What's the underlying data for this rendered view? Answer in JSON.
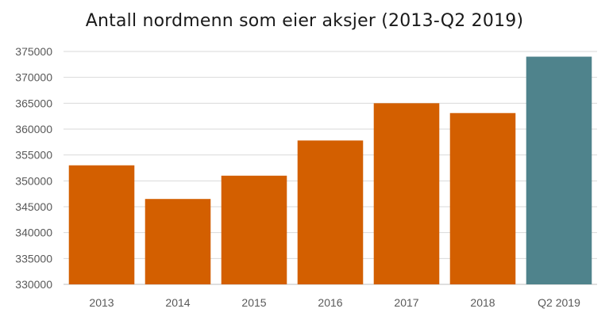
{
  "chart_data": {
    "type": "bar",
    "title": "Antall nordmenn som eier aksjer (2013-Q2 2019)",
    "xlabel": "",
    "ylabel": "",
    "categories": [
      "2013",
      "2014",
      "2015",
      "2016",
      "2017",
      "2018",
      "Q2 2019"
    ],
    "values": [
      353000,
      346500,
      351000,
      357800,
      365000,
      363100,
      374000
    ],
    "bar_colors": [
      "#d35f00",
      "#d35f00",
      "#d35f00",
      "#d35f00",
      "#d35f00",
      "#d35f00",
      "#4f838c"
    ],
    "ylim": [
      330000,
      375000
    ],
    "yticks": [
      330000,
      335000,
      340000,
      345000,
      350000,
      355000,
      360000,
      365000,
      370000,
      375000
    ],
    "ytick_labels": [
      "330000",
      "335000",
      "340000",
      "345000",
      "350000",
      "355000",
      "360000",
      "365000",
      "370000",
      "375000"
    ],
    "grid": true,
    "legend": "none"
  }
}
